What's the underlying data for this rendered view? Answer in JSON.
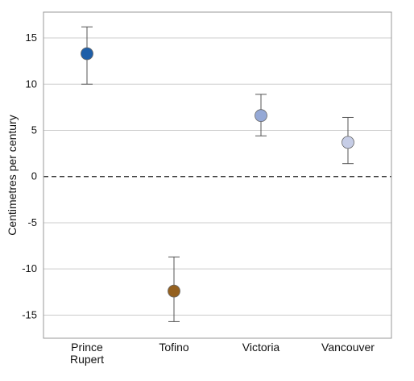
{
  "chart_data": {
    "type": "scatter",
    "ylabel": "Centimetres per century",
    "ylim": [
      -17.5,
      17.8
    ],
    "yticks": [
      15,
      10,
      5,
      0,
      -5,
      -10,
      -15
    ],
    "ytick_labels": [
      "15",
      "10",
      "5",
      "0",
      "-5",
      "-10",
      "-15"
    ],
    "grid": true,
    "zero_line": "dashed",
    "categories": [
      [
        "Prince",
        "Rupert"
      ],
      [
        "Tofino"
      ],
      [
        "Victoria"
      ],
      [
        "Vancouver"
      ]
    ],
    "points": [
      {
        "value": 13.3,
        "low": 10.0,
        "high": 16.2,
        "color": "#1f5fa8"
      },
      {
        "value": -12.4,
        "low": -15.7,
        "high": -8.7,
        "color": "#94601f"
      },
      {
        "value": 6.6,
        "low": 4.4,
        "high": 8.9,
        "color": "#95a9d6"
      },
      {
        "value": 3.7,
        "low": 1.4,
        "high": 6.4,
        "color": "#c6cde6"
      }
    ],
    "colors": {
      "grid": "#cccccc",
      "frame": "#999999",
      "errorbar": "#555555",
      "zero_line": "#222222"
    }
  }
}
